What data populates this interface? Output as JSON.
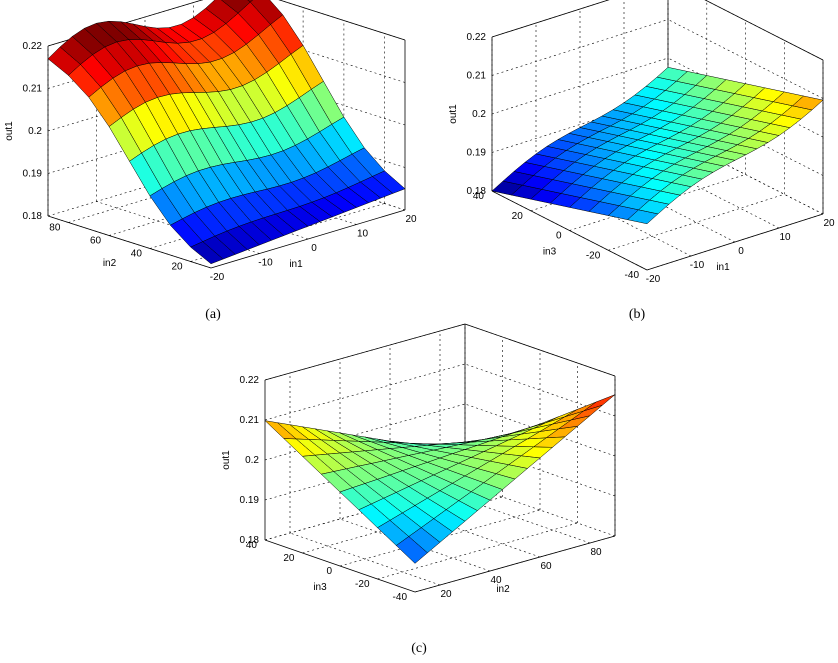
{
  "chart_data": [
    {
      "type": "surface",
      "caption": "(a)",
      "xlabel": "in1",
      "ylabel": "in2",
      "zlabel": "out1",
      "x_ticks": [
        "-20",
        "-10",
        "0",
        "10",
        "20"
      ],
      "y_ticks": [
        "20",
        "40",
        "60",
        "80"
      ],
      "z_ticks": [
        "0.18",
        "0.19",
        "0.2",
        "0.21",
        "0.22"
      ],
      "xlim": [
        -20,
        20
      ],
      "ylim": [
        10,
        90
      ],
      "zlim": [
        0.18,
        0.22
      ],
      "grid": true,
      "colormap": "jet",
      "mesh_x": [
        -20,
        -17.5,
        -15,
        -12.5,
        -10,
        -7.5,
        -5,
        -2.5,
        0,
        2.5,
        5,
        7.5,
        10,
        12.5,
        15,
        17.5,
        20
      ],
      "mesh_y": [
        10,
        20,
        30,
        40,
        50,
        60,
        70,
        80,
        90
      ],
      "surface_sample": {
        "corner_in1_-20_in2_90": 0.217,
        "corner_in1_20_in2_90": 0.22,
        "corner_in1_-20_in2_10": 0.181,
        "corner_in1_20_in2_10": 0.186
      }
    },
    {
      "type": "surface",
      "caption": "(b)",
      "xlabel": "in1",
      "ylabel": "in3",
      "zlabel": "out1",
      "x_ticks": [
        "-20",
        "-10",
        "0",
        "10",
        "20"
      ],
      "y_ticks": [
        "-40",
        "-20",
        "0",
        "20",
        "40"
      ],
      "z_ticks": [
        "0.18",
        "0.19",
        "0.2",
        "0.21",
        "0.22"
      ],
      "xlim": [
        -20,
        20
      ],
      "ylim": [
        -40,
        40
      ],
      "zlim": [
        0.18,
        0.22
      ],
      "grid": true,
      "colormap": "jet",
      "mesh_x": [
        -20,
        -17.5,
        -15,
        -12.5,
        -10,
        -7.5,
        -5,
        -2.5,
        0,
        2.5,
        5,
        7.5,
        10,
        12.5,
        15,
        17.5,
        20
      ],
      "mesh_y": [
        -40,
        -30,
        -20,
        -10,
        0,
        10,
        20,
        30,
        40
      ]
    },
    {
      "type": "surface",
      "caption": "(c)",
      "xlabel": "in2",
      "ylabel": "in3",
      "zlabel": "out1",
      "x_ticks": [
        "20",
        "40",
        "60",
        "80"
      ],
      "y_ticks": [
        "-40",
        "-20",
        "0",
        "20",
        "40"
      ],
      "z_ticks": [
        "0.18",
        "0.19",
        "0.2",
        "0.21",
        "0.22"
      ],
      "xlim": [
        10,
        90
      ],
      "ylim": [
        -40,
        40
      ],
      "zlim": [
        0.18,
        0.22
      ],
      "grid": true,
      "colormap": "jet",
      "mesh_x": [
        10,
        15,
        20,
        25,
        30,
        35,
        40,
        45,
        50,
        55,
        60,
        65,
        70,
        75,
        80,
        85,
        90
      ],
      "mesh_y": [
        -40,
        -30,
        -20,
        -10,
        0,
        10,
        20,
        30,
        40
      ]
    }
  ]
}
